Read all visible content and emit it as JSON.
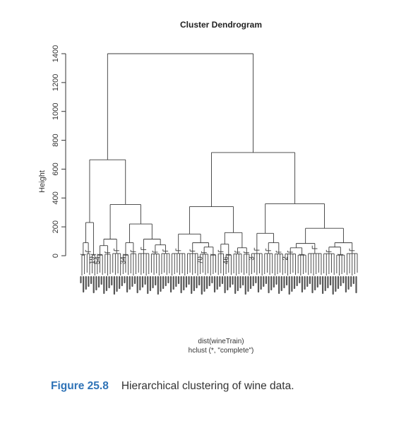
{
  "chart_data": {
    "type": "dendrogram",
    "title": "Cluster Dendrogram",
    "ylabel": "Height",
    "xlabel": "dist(wineTrain)",
    "sublabel": "hclust (*, \"complete\")",
    "yticks": [
      "0",
      "200",
      "400",
      "600",
      "800",
      "1000",
      "1200",
      "1400"
    ],
    "ylim": [
      0,
      1400
    ],
    "visible_leaf_labels": [
      "19",
      "54",
      "34",
      "70",
      "46",
      "3",
      "2"
    ],
    "tree": {
      "h": 1400,
      "children": [
        {
          "h": 665,
          "children": [
            {
              "h": 230,
              "children": [
                {
                  "h": 90,
                  "children": [
                    {
                      "leaves": 2
                    },
                    {
                      "h": 40,
                      "leaves": 2
                    }
                  ]
                },
                {
                  "leaves": 2,
                  "label": "19"
                }
              ]
            },
            {
              "h": 355,
              "children": [
                {
                  "h": 115,
                  "children": [
                    {
                      "h": 70,
                      "children": [
                        {
                          "leaves": 3,
                          "label": "54"
                        },
                        {
                          "h": 30,
                          "leaves": 3
                        }
                      ]
                    },
                    {
                      "h": 50,
                      "leaves": 4
                    }
                  ]
                },
                {
                  "h": 220,
                  "children": [
                    {
                      "h": 90,
                      "children": [
                        {
                          "leaves": 3,
                          "label": "34"
                        },
                        {
                          "h": 40,
                          "leaves": 3
                        }
                      ]
                    },
                    {
                      "h": 115,
                      "children": [
                        {
                          "h": 60,
                          "leaves": 5
                        },
                        {
                          "h": 75,
                          "children": [
                            {
                              "h": 35,
                              "leaves": 4
                            },
                            {
                              "h": 45,
                              "leaves": 4
                            }
                          ]
                        }
                      ]
                    }
                  ]
                }
              ]
            }
          ]
        },
        {
          "h": 715,
          "children": [
            {
              "h": 340,
              "children": [
                {
                  "h": 150,
                  "children": [
                    {
                      "h": 50,
                      "leaves": 6
                    },
                    {
                      "h": 90,
                      "children": [
                        {
                          "h": 45,
                          "leaves": 5
                        },
                        {
                          "h": 60,
                          "children": [
                            {
                              "h": 30,
                              "leaves": 4,
                              "label": "70"
                            },
                            {
                              "leaves": 3
                            }
                          ]
                        }
                      ]
                    }
                  ]
                },
                {
                  "h": 160,
                  "children": [
                    {
                      "h": 80,
                      "children": [
                        {
                          "h": 40,
                          "leaves": 3
                        },
                        {
                          "leaves": 3,
                          "label": "46"
                        }
                      ]
                    },
                    {
                      "h": 55,
                      "children": [
                        {
                          "h": 35,
                          "leaves": 4
                        },
                        {
                          "h": 30,
                          "leaves": 3
                        }
                      ]
                    }
                  ]
                }
              ]
            },
            {
              "h": 360,
              "children": [
                {
                  "h": 155,
                  "children": [
                    {
                      "h": 55,
                      "leaves": 5,
                      "label": "3"
                    },
                    {
                      "h": 90,
                      "children": [
                        {
                          "h": 50,
                          "leaves": 4
                        },
                        {
                          "h": 35,
                          "leaves": 4
                        }
                      ]
                    }
                  ]
                },
                {
                  "h": 190,
                  "children": [
                    {
                      "h": 85,
                      "children": [
                        {
                          "h": 55,
                          "children": [
                            {
                              "h": 35,
                              "leaves": 5,
                              "label": "2"
                            },
                            {
                              "leaves": 4
                            }
                          ]
                        },
                        {
                          "h": 70,
                          "leaves": 6
                        }
                      ]
                    },
                    {
                      "h": 90,
                      "children": [
                        {
                          "h": 60,
                          "children": [
                            {
                              "h": 40,
                              "leaves": 5
                            },
                            {
                              "leaves": 4
                            }
                          ]
                        },
                        {
                          "h": 50,
                          "leaves": 5
                        }
                      ]
                    }
                  ]
                }
              ]
            }
          ]
        }
      ]
    }
  },
  "caption": {
    "label": "Figure 25.8",
    "text": "Hierarchical clustering of wine data."
  }
}
